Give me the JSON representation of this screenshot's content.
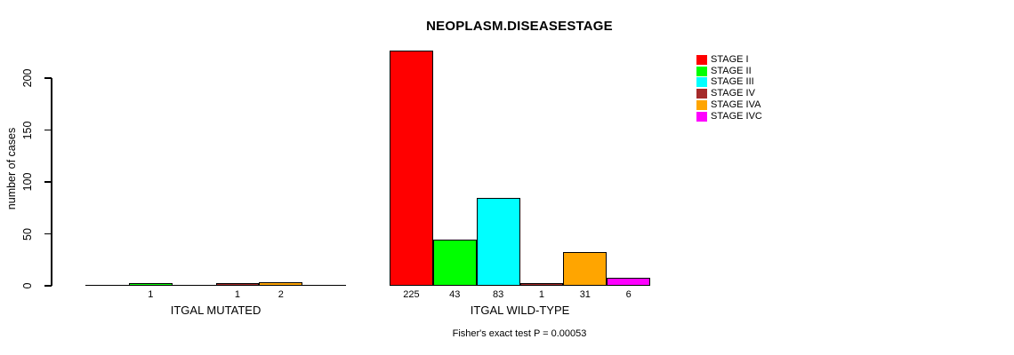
{
  "chart_data": {
    "type": "bar",
    "title": "NEOPLASM.DISEASESTAGE",
    "ylabel": "number of cases",
    "footer": "Fisher's exact test P = 0.00053",
    "yticks": [
      0,
      50,
      100,
      150,
      200
    ],
    "ylim": [
      0,
      230
    ],
    "grid": false,
    "legend_position": "right",
    "bar_value_labels": "shown under each nonzero bar",
    "groups": [
      "ITGAL MUTATED",
      "ITGAL WILD-TYPE"
    ],
    "series": [
      {
        "name": "STAGE I",
        "color": "#FF0000",
        "values": [
          0,
          225
        ]
      },
      {
        "name": "STAGE II",
        "color": "#00FF00",
        "values": [
          1,
          43
        ]
      },
      {
        "name": "STAGE III",
        "color": "#00FFFF",
        "values": [
          0,
          83
        ]
      },
      {
        "name": "STAGE IV",
        "color": "#A52A2A",
        "values": [
          1,
          1
        ]
      },
      {
        "name": "STAGE IVA",
        "color": "#FFA500",
        "values": [
          2,
          31
        ]
      },
      {
        "name": "STAGE IVC",
        "color": "#FF00FF",
        "values": [
          0,
          6
        ]
      }
    ]
  }
}
